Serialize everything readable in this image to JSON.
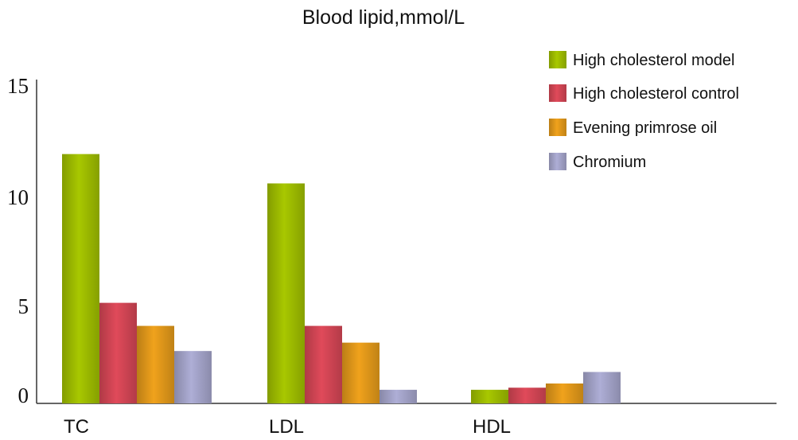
{
  "chart_data": {
    "type": "bar",
    "title": "Blood lipid,mmol/L",
    "xlabel": "",
    "ylabel": "",
    "categories": [
      "TC",
      "LDL",
      "HDL"
    ],
    "ylim": [
      0,
      15
    ],
    "yticks": [
      "0",
      "5",
      "10",
      "15"
    ],
    "grid": false,
    "legend_position": "top-right",
    "series": [
      {
        "name": "High cholesterol model",
        "color": "#a8c800",
        "values": [
          11.9,
          10.5,
          0.65
        ]
      },
      {
        "name": "High cholesterol control",
        "color": "#e04a5a",
        "values": [
          4.8,
          3.7,
          0.75
        ]
      },
      {
        "name": "Evening primrose oil",
        "color": "#f0a21c",
        "values": [
          3.7,
          2.9,
          0.95
        ]
      },
      {
        "name": "Chromium",
        "color": "#aeaed6",
        "values": [
          2.5,
          0.65,
          1.5
        ]
      }
    ]
  }
}
